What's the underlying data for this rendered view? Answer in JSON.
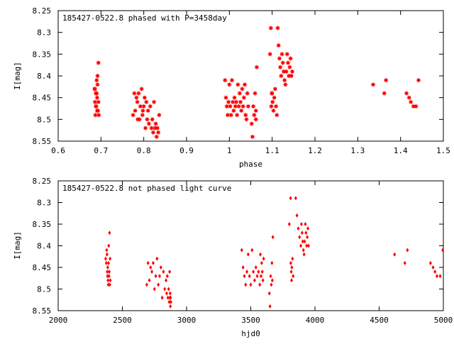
{
  "chart_data": [
    {
      "type": "scatter",
      "title": "185427-0522.8 phased with P=3458day",
      "xlabel": "phase",
      "ylabel": "I[mag]",
      "xlim": [
        0.6,
        1.5
      ],
      "ylim": [
        8.55,
        8.25
      ],
      "y_inverted": true,
      "grid": false,
      "marker": "star",
      "color": "#ff0000",
      "xticks": [
        "0.6",
        "0.7",
        "0.8",
        "0.9",
        "1",
        "1.1",
        "1.2",
        "1.3",
        "1.4",
        "1.5"
      ],
      "yticks": [
        "8.25",
        "8.3",
        "8.35",
        "8.4",
        "8.45",
        "8.5",
        "8.55"
      ],
      "series": [
        {
          "points": [
            [
              0.685,
              8.43
            ],
            [
              0.688,
              8.44
            ],
            [
              0.69,
              8.41
            ],
            [
              0.692,
              8.42
            ],
            [
              0.694,
              8.37
            ],
            [
              0.686,
              8.46
            ],
            [
              0.689,
              8.47
            ],
            [
              0.691,
              8.45
            ],
            [
              0.693,
              8.48
            ],
            [
              0.687,
              8.49
            ],
            [
              0.695,
              8.49
            ],
            [
              0.69,
              8.44
            ],
            [
              0.692,
              8.4
            ],
            [
              0.688,
              8.47
            ],
            [
              0.694,
              8.46
            ],
            [
              0.686,
              8.43
            ],
            [
              0.691,
              8.48
            ],
            [
              0.775,
              8.49
            ],
            [
              0.778,
              8.44
            ],
            [
              0.78,
              8.48
            ],
            [
              0.783,
              8.45
            ],
            [
              0.785,
              8.46
            ],
            [
              0.788,
              8.44
            ],
            [
              0.79,
              8.5
            ],
            [
              0.792,
              8.47
            ],
            [
              0.795,
              8.43
            ],
            [
              0.797,
              8.49
            ],
            [
              0.8,
              8.47
            ],
            [
              0.802,
              8.45
            ],
            [
              0.804,
              8.52
            ],
            [
              0.806,
              8.46
            ],
            [
              0.808,
              8.5
            ],
            [
              0.81,
              8.48
            ],
            [
              0.812,
              8.51
            ],
            [
              0.815,
              8.47
            ],
            [
              0.818,
              8.52
            ],
            [
              0.82,
              8.5
            ],
            [
              0.822,
              8.53
            ],
            [
              0.824,
              8.46
            ],
            [
              0.826,
              8.52
            ],
            [
              0.828,
              8.51
            ],
            [
              0.83,
              8.54
            ],
            [
              0.832,
              8.52
            ],
            [
              0.834,
              8.53
            ],
            [
              0.836,
              8.49
            ],
            [
              0.798,
              8.48
            ],
            [
              0.786,
              8.5
            ],
            [
              0.99,
              8.41
            ],
            [
              0.992,
              8.45
            ],
            [
              0.994,
              8.47
            ],
            [
              0.996,
              8.49
            ],
            [
              0.998,
              8.46
            ],
            [
              1.0,
              8.42
            ],
            [
              1.002,
              8.47
            ],
            [
              1.004,
              8.49
            ],
            [
              1.006,
              8.41
            ],
            [
              1.008,
              8.46
            ],
            [
              1.01,
              8.48
            ],
            [
              1.012,
              8.45
            ],
            [
              1.014,
              8.47
            ],
            [
              1.016,
              8.46
            ],
            [
              1.018,
              8.49
            ],
            [
              1.02,
              8.42
            ],
            [
              1.022,
              8.47
            ],
            [
              1.024,
              8.44
            ],
            [
              1.026,
              8.46
            ],
            [
              1.028,
              8.48
            ],
            [
              1.03,
              8.43
            ],
            [
              1.032,
              8.47
            ],
            [
              1.034,
              8.45
            ],
            [
              1.036,
              8.42
            ],
            [
              1.038,
              8.49
            ],
            [
              1.04,
              8.5
            ],
            [
              1.042,
              8.44
            ],
            [
              1.044,
              8.47
            ],
            [
              1.052,
              8.51
            ],
            [
              1.054,
              8.54
            ],
            [
              1.056,
              8.47
            ],
            [
              1.058,
              8.49
            ],
            [
              1.06,
              8.44
            ],
            [
              1.062,
              8.48
            ],
            [
              1.064,
              8.38
            ],
            [
              1.062,
              8.5
            ],
            [
              1.095,
              8.35
            ],
            [
              1.097,
              8.29
            ],
            [
              1.099,
              8.44
            ],
            [
              1.101,
              8.46
            ],
            [
              1.103,
              8.48
            ],
            [
              1.105,
              8.45
            ],
            [
              1.107,
              8.43
            ],
            [
              1.109,
              8.47
            ],
            [
              1.111,
              8.49
            ],
            [
              1.113,
              8.29
            ],
            [
              1.115,
              8.33
            ],
            [
              1.117,
              8.36
            ],
            [
              1.119,
              8.38
            ],
            [
              1.121,
              8.4
            ],
            [
              1.123,
              8.35
            ],
            [
              1.125,
              8.37
            ],
            [
              1.127,
              8.39
            ],
            [
              1.129,
              8.41
            ],
            [
              1.131,
              8.42
            ],
            [
              1.133,
              8.39
            ],
            [
              1.135,
              8.35
            ],
            [
              1.137,
              8.37
            ],
            [
              1.139,
              8.4
            ],
            [
              1.141,
              8.38
            ],
            [
              1.143,
              8.36
            ],
            [
              1.145,
              8.4
            ],
            [
              1.147,
              8.39
            ],
            [
              1.1,
              8.44
            ],
            [
              1.098,
              8.47
            ],
            [
              1.336,
              8.42
            ],
            [
              1.362,
              8.44
            ],
            [
              1.366,
              8.41
            ],
            [
              1.414,
              8.44
            ],
            [
              1.42,
              8.45
            ],
            [
              1.424,
              8.46
            ],
            [
              1.43,
              8.47
            ],
            [
              1.436,
              8.47
            ],
            [
              1.442,
              8.41
            ]
          ]
        }
      ]
    },
    {
      "type": "scatter",
      "title": "185427-0522.8 not phased light curve",
      "xlabel": "hjd0",
      "ylabel": "I[mag]",
      "xlim": [
        2000,
        5000
      ],
      "ylim": [
        8.55,
        8.25
      ],
      "y_inverted": true,
      "grid": false,
      "marker": "diamond",
      "color": "#ff0000",
      "xticks": [
        "2000",
        "2500",
        "3000",
        "3500",
        "4000",
        "4500",
        "5000"
      ],
      "yticks": [
        "8.25",
        "8.3",
        "8.35",
        "8.4",
        "8.45",
        "8.5",
        "8.55"
      ],
      "series": [
        {
          "points": [
            [
              2370,
              8.43
            ],
            [
              2375,
              8.44
            ],
            [
              2378,
              8.41
            ],
            [
              2380,
              8.42
            ],
            [
              2382,
              8.46
            ],
            [
              2384,
              8.47
            ],
            [
              2386,
              8.45
            ],
            [
              2388,
              8.48
            ],
            [
              2390,
              8.49
            ],
            [
              2392,
              8.44
            ],
            [
              2394,
              8.4
            ],
            [
              2396,
              8.47
            ],
            [
              2398,
              8.46
            ],
            [
              2400,
              8.37
            ],
            [
              2402,
              8.49
            ],
            [
              2404,
              8.43
            ],
            [
              2406,
              8.48
            ],
            [
              2690,
              8.49
            ],
            [
              2700,
              8.44
            ],
            [
              2710,
              8.48
            ],
            [
              2720,
              8.45
            ],
            [
              2730,
              8.46
            ],
            [
              2740,
              8.44
            ],
            [
              2750,
              8.5
            ],
            [
              2760,
              8.47
            ],
            [
              2770,
              8.43
            ],
            [
              2780,
              8.49
            ],
            [
              2790,
              8.47
            ],
            [
              2800,
              8.45
            ],
            [
              2810,
              8.52
            ],
            [
              2820,
              8.46
            ],
            [
              2830,
              8.5
            ],
            [
              2840,
              8.48
            ],
            [
              2845,
              8.51
            ],
            [
              2850,
              8.47
            ],
            [
              2855,
              8.52
            ],
            [
              2860,
              8.5
            ],
            [
              2865,
              8.53
            ],
            [
              2868,
              8.46
            ],
            [
              2870,
              8.52
            ],
            [
              2872,
              8.51
            ],
            [
              2874,
              8.54
            ],
            [
              2876,
              8.52
            ],
            [
              2878,
              8.53
            ],
            [
              3430,
              8.41
            ],
            [
              3440,
              8.45
            ],
            [
              3450,
              8.47
            ],
            [
              3460,
              8.49
            ],
            [
              3470,
              8.46
            ],
            [
              3480,
              8.42
            ],
            [
              3490,
              8.47
            ],
            [
              3500,
              8.49
            ],
            [
              3510,
              8.41
            ],
            [
              3520,
              8.46
            ],
            [
              3530,
              8.48
            ],
            [
              3540,
              8.45
            ],
            [
              3550,
              8.47
            ],
            [
              3560,
              8.46
            ],
            [
              3570,
              8.49
            ],
            [
              3575,
              8.42
            ],
            [
              3580,
              8.47
            ],
            [
              3585,
              8.44
            ],
            [
              3590,
              8.46
            ],
            [
              3595,
              8.48
            ],
            [
              3600,
              8.43
            ],
            [
              3645,
              8.51
            ],
            [
              3650,
              8.54
            ],
            [
              3655,
              8.47
            ],
            [
              3660,
              8.49
            ],
            [
              3665,
              8.44
            ],
            [
              3668,
              8.48
            ],
            [
              3672,
              8.38
            ],
            [
              3800,
              8.35
            ],
            [
              3810,
              8.29
            ],
            [
              3812,
              8.44
            ],
            [
              3815,
              8.46
            ],
            [
              3818,
              8.48
            ],
            [
              3820,
              8.45
            ],
            [
              3825,
              8.43
            ],
            [
              3830,
              8.47
            ],
            [
              3850,
              8.29
            ],
            [
              3860,
              8.33
            ],
            [
              3870,
              8.36
            ],
            [
              3880,
              8.38
            ],
            [
              3890,
              8.4
            ],
            [
              3895,
              8.35
            ],
            [
              3900,
              8.37
            ],
            [
              3905,
              8.39
            ],
            [
              3910,
              8.41
            ],
            [
              3915,
              8.42
            ],
            [
              3920,
              8.39
            ],
            [
              3925,
              8.35
            ],
            [
              3930,
              8.37
            ],
            [
              3935,
              8.4
            ],
            [
              3940,
              8.38
            ],
            [
              3945,
              8.36
            ],
            [
              3950,
              8.4
            ],
            [
              4620,
              8.42
            ],
            [
              4700,
              8.44
            ],
            [
              4720,
              8.41
            ],
            [
              4900,
              8.44
            ],
            [
              4920,
              8.45
            ],
            [
              4935,
              8.46
            ],
            [
              4950,
              8.47
            ],
            [
              4975,
              8.47
            ],
            [
              4995,
              8.41
            ]
          ]
        }
      ]
    }
  ]
}
